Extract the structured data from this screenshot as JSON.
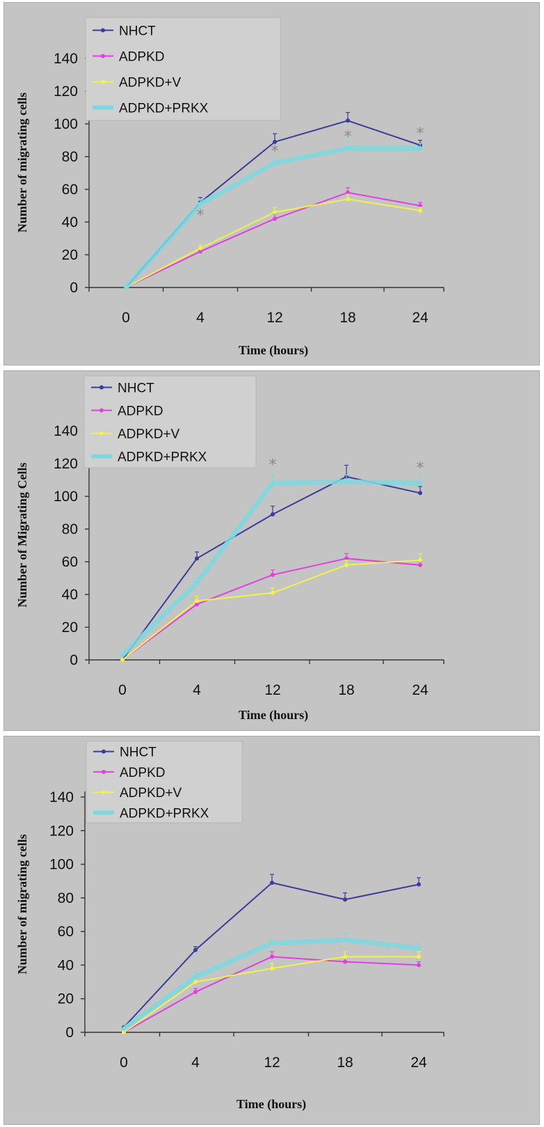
{
  "chart_data": [
    {
      "type": "line",
      "title": "",
      "xlabel": "Time (hours)",
      "ylabel": "Number of migrating cells",
      "categories": [
        "0",
        "4",
        "12",
        "18",
        "24"
      ],
      "ylim": [
        0,
        140
      ],
      "yticks": [
        0,
        20,
        40,
        60,
        80,
        100,
        120,
        140
      ],
      "legend_position": "top-left",
      "grid": false,
      "series": [
        {
          "name": "NHCT",
          "color": "#3b3b9a",
          "values": [
            0,
            52,
            89,
            102,
            87
          ],
          "errors": [
            0,
            3,
            5,
            5,
            3
          ]
        },
        {
          "name": "ADPKD",
          "color": "#e040e0",
          "values": [
            0,
            22,
            42,
            58,
            50
          ],
          "errors": [
            0,
            2,
            3,
            3,
            2
          ]
        },
        {
          "name": "ADPKD+V",
          "color": "#f2f24a",
          "values": [
            0,
            24,
            46,
            54,
            47
          ],
          "errors": [
            0,
            2,
            3,
            3,
            2
          ]
        },
        {
          "name": "ADPKD+PRKX",
          "color": "#7fd8e0",
          "values": [
            0,
            51,
            76,
            85,
            85
          ],
          "errors": [
            0,
            3,
            4,
            4,
            3
          ]
        }
      ],
      "annotations": [
        {
          "text": "*",
          "x": "4",
          "y": 45
        },
        {
          "text": "*",
          "x": "12",
          "y": 84
        },
        {
          "text": "*",
          "x": "18",
          "y": 93
        },
        {
          "text": "*",
          "x": "24",
          "y": 95
        }
      ]
    },
    {
      "type": "line",
      "title": "",
      "xlabel": "Time (hours)",
      "ylabel": "Number of Migrating Cells",
      "categories": [
        "0",
        "4",
        "12",
        "18",
        "24"
      ],
      "ylim": [
        0,
        140
      ],
      "yticks": [
        0,
        20,
        40,
        60,
        80,
        100,
        120,
        140
      ],
      "legend_position": "top-left",
      "grid": false,
      "series": [
        {
          "name": "NHCT",
          "color": "#3b3b9a",
          "values": [
            0,
            62,
            89,
            112,
            102
          ],
          "errors": [
            0,
            4,
            5,
            7,
            4
          ]
        },
        {
          "name": "ADPKD",
          "color": "#e040e0",
          "values": [
            0,
            34,
            52,
            62,
            58
          ],
          "errors": [
            0,
            2,
            3,
            3,
            2
          ]
        },
        {
          "name": "ADPKD+V",
          "color": "#f2f24a",
          "values": [
            0,
            36,
            41,
            58,
            61
          ],
          "errors": [
            0,
            3,
            3,
            3,
            4
          ]
        },
        {
          "name": "ADPKD+PRKX",
          "color": "#7fd8e0",
          "values": [
            3,
            47,
            108,
            109,
            108
          ],
          "errors": [
            0,
            3,
            5,
            4,
            4
          ]
        }
      ],
      "annotations": [
        {
          "text": "*",
          "x": "12",
          "y": 120
        },
        {
          "text": "*",
          "x": "24",
          "y": 118
        }
      ]
    },
    {
      "type": "line",
      "title": "",
      "xlabel": "Time (hours)",
      "ylabel": "Number of migrating cells",
      "categories": [
        "0",
        "4",
        "12",
        "18",
        "24"
      ],
      "ylim": [
        0,
        140
      ],
      "yticks": [
        0,
        20,
        40,
        60,
        80,
        100,
        120,
        140
      ],
      "legend_position": "top-left",
      "grid": false,
      "series": [
        {
          "name": "NHCT",
          "color": "#3b3b9a",
          "values": [
            3,
            49,
            89,
            79,
            88
          ],
          "errors": [
            0,
            2,
            5,
            4,
            4
          ]
        },
        {
          "name": "ADPKD",
          "color": "#e040e0",
          "values": [
            0,
            24,
            45,
            42,
            40
          ],
          "errors": [
            0,
            2,
            3,
            3,
            2
          ]
        },
        {
          "name": "ADPKD+V",
          "color": "#f2f24a",
          "values": [
            0,
            30,
            38,
            45,
            45
          ],
          "errors": [
            0,
            2,
            3,
            3,
            3
          ]
        },
        {
          "name": "ADPKD+PRKX",
          "color": "#7fd8e0",
          "values": [
            2,
            33,
            53,
            55,
            50
          ],
          "errors": [
            0,
            3,
            3,
            4,
            3
          ]
        }
      ],
      "annotations": []
    }
  ]
}
